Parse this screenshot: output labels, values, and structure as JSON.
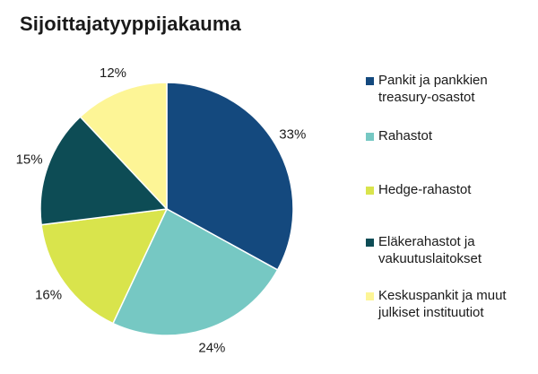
{
  "title": "Sijoittajatyyppijakauma",
  "chart_data": {
    "type": "pie",
    "title": "Sijoittajatyyppijakauma",
    "legend_position": "right",
    "start_angle": "12 o'clock, clockwise",
    "slices": [
      {
        "label": "Pankit ja pankkien treasury-osastot",
        "value": 33,
        "display": "33%",
        "color": "#14497e"
      },
      {
        "label": "Rahastot",
        "value": 24,
        "display": "24%",
        "color": "#76c8c3"
      },
      {
        "label": "Hedge-rahastot",
        "value": 16,
        "display": "16%",
        "color": "#d9e44c"
      },
      {
        "label": "Eläkerahastot ja vakuutuslaitokset",
        "value": 15,
        "display": "15%",
        "color": "#0d4c55"
      },
      {
        "label": "Keskuspankit ja muut julkiset instituutiot",
        "value": 12,
        "display": "12%",
        "color": "#fdf596"
      }
    ]
  }
}
